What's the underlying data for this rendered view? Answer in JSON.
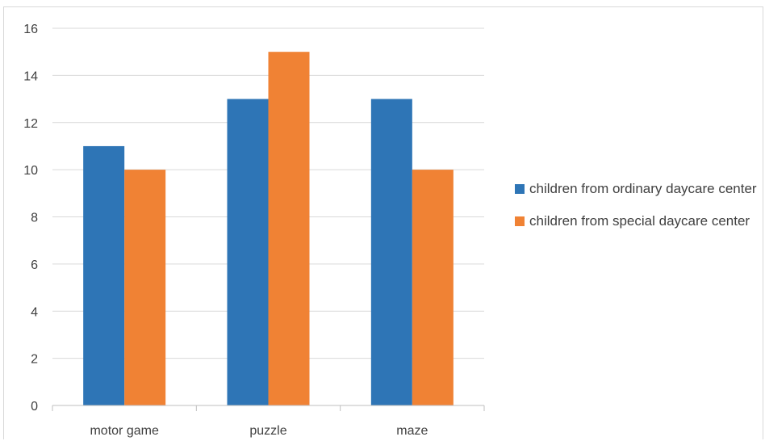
{
  "chart_data": {
    "type": "bar",
    "categories": [
      "motor game",
      "puzzle",
      "maze"
    ],
    "series": [
      {
        "name": "children from ordinary daycare center",
        "values": [
          11,
          13,
          13
        ],
        "color": "#2e75b6"
      },
      {
        "name": "children from special daycare center",
        "values": [
          10,
          15,
          10
        ],
        "color": "#f08234"
      }
    ],
    "title": "",
    "xlabel": "",
    "ylabel": "",
    "ylim": [
      0,
      16
    ],
    "yticks": [
      0,
      2,
      4,
      6,
      8,
      10,
      12,
      14,
      16
    ],
    "grid": true,
    "legend_position": "right",
    "gridline_color": "#d9d9d9",
    "axis_color": "#bfbfbf"
  }
}
